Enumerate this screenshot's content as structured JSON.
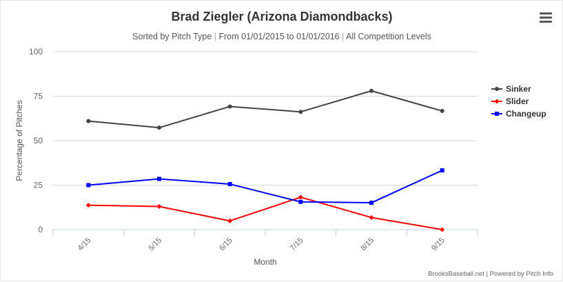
{
  "chart_data": {
    "type": "line",
    "title": "Brad Ziegler (Arizona Diamondbacks)",
    "subtitle_parts": [
      "Sorted by Pitch Type",
      "From 01/01/2015 to 01/01/2016",
      "All Competition Levels"
    ],
    "subtitle_separator": " | ",
    "xlabel": "Month",
    "ylabel": "Percentage of Pitches",
    "categories": [
      "4/15",
      "5/15",
      "6/15",
      "7/15",
      "8/15",
      "9/15"
    ],
    "ylim": [
      0,
      100
    ],
    "yticks": [
      0,
      25,
      50,
      75,
      100
    ],
    "grid": true,
    "legend_position": "right",
    "series": [
      {
        "name": "Sinker",
        "color": "#434348",
        "marker": "circle",
        "values": [
          61,
          57.3,
          69.2,
          66.2,
          78,
          66.7
        ]
      },
      {
        "name": "Slider",
        "color": "#ff0000",
        "marker": "diamond",
        "values": [
          13.7,
          13,
          4.9,
          18.2,
          6.8,
          0
        ]
      },
      {
        "name": "Changeup",
        "color": "#0000ff",
        "marker": "square",
        "values": [
          25,
          28.5,
          25.6,
          15.6,
          15.1,
          33.3
        ]
      }
    ]
  },
  "credits": "BrooksBaseball.net | Powered by Pitch Info",
  "menu_icon": "hamburger-menu-icon"
}
